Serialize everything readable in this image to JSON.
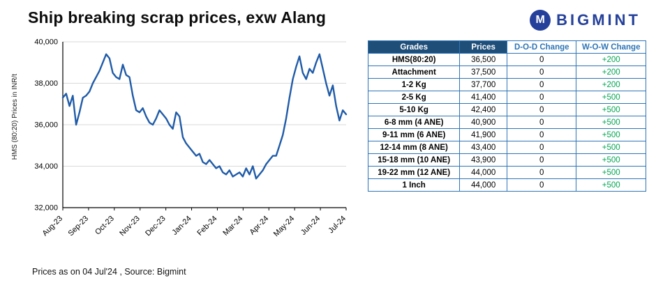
{
  "header": {
    "title": "Ship breaking scrap prices, exw Alang",
    "brand": "BIGMINT",
    "brand_icon_glyph": "M",
    "brand_color": "#24409a"
  },
  "chart_data": {
    "type": "line",
    "title": "",
    "xlabel": "",
    "ylabel": "HMS (80:20) Prices in INR/t",
    "ylim": [
      32000,
      40000
    ],
    "yticks": [
      32000,
      34000,
      36000,
      38000,
      40000
    ],
    "grid": "horizontal",
    "legend": "none",
    "x_tick_labels": [
      "Aug-23",
      "Sep-23",
      "Oct-23",
      "Nov-23",
      "Dec-23",
      "Jan-24",
      "Feb-24",
      "Mar-24",
      "Apr-24",
      "May-24",
      "Jun-24",
      "Jul-24"
    ],
    "series": [
      {
        "name": "HMS(80:20) exw Alang",
        "color": "#1f5ba8",
        "values": [
          37300,
          37500,
          36900,
          37400,
          36000,
          36600,
          37300,
          37400,
          37600,
          38000,
          38300,
          38600,
          39000,
          39400,
          39200,
          38500,
          38300,
          38200,
          38900,
          38400,
          38300,
          37400,
          36700,
          36600,
          36800,
          36400,
          36100,
          36000,
          36300,
          36700,
          36500,
          36300,
          36000,
          35800,
          36600,
          36400,
          35400,
          35100,
          34900,
          34700,
          34500,
          34600,
          34200,
          34100,
          34300,
          34100,
          33900,
          34000,
          33700,
          33600,
          33800,
          33500,
          33600,
          33700,
          33500,
          33900,
          33600,
          34000,
          33400,
          33600,
          33800,
          34100,
          34300,
          34500,
          34500,
          35000,
          35500,
          36300,
          37300,
          38200,
          38800,
          39300,
          38500,
          38200,
          38700,
          38500,
          39000,
          39400,
          38700,
          38000,
          37400,
          37900,
          36900,
          36200,
          36700,
          36500
        ]
      }
    ]
  },
  "table": {
    "headers": [
      "Grades",
      "Prices",
      "D-O-D Change",
      "W-O-W Change"
    ],
    "rows": [
      {
        "grade": "HMS(80:20)",
        "price": "36,500",
        "dod": "0",
        "wow": "+200"
      },
      {
        "grade": "Attachment",
        "price": "37,500",
        "dod": "0",
        "wow": "+200"
      },
      {
        "grade": "1-2 Kg",
        "price": "37,700",
        "dod": "0",
        "wow": "+200"
      },
      {
        "grade": "2-5 Kg",
        "price": "41,400",
        "dod": "0",
        "wow": "+500"
      },
      {
        "grade": "5-10 Kg",
        "price": "42,400",
        "dod": "0",
        "wow": "+500"
      },
      {
        "grade": "6-8 mm (4 ANE)",
        "price": "40,900",
        "dod": "0",
        "wow": "+500"
      },
      {
        "grade": "9-11 mm (6 ANE)",
        "price": "41,900",
        "dod": "0",
        "wow": "+500"
      },
      {
        "grade": "12-14 mm (8 ANE)",
        "price": "43,400",
        "dod": "0",
        "wow": "+500"
      },
      {
        "grade": "15-18 mm (10 ANE)",
        "price": "43,900",
        "dod": "0",
        "wow": "+500"
      },
      {
        "grade": "19-22 mm (12 ANE)",
        "price": "44,000",
        "dod": "0",
        "wow": "+500"
      },
      {
        "grade": "1 Inch",
        "price": "44,000",
        "dod": "0",
        "wow": "+500"
      }
    ]
  },
  "footer": {
    "note": "Prices as on 04 Jul'24 , Source: Bigmint"
  },
  "colors": {
    "line": "#1f5ba8",
    "table_header_bg": "#1f4e79",
    "table_border": "#2e75b6",
    "positive_change": "#00a651",
    "gridline": "#d9d9d9"
  }
}
